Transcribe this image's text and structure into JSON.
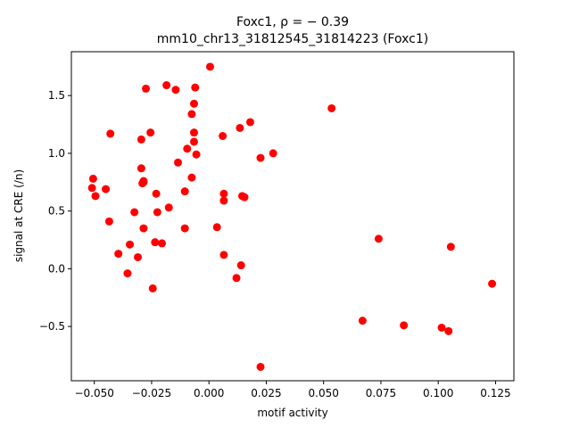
{
  "chart_data": {
    "type": "scatter",
    "title_line1": "Foxc1, ρ = − 0.39",
    "title_line2": "mm10_chr13_31812545_31814223 (Foxc1)",
    "xlabel": "motif activity",
    "ylabel": "signal at CRE (/n)",
    "xlim": [
      -0.06,
      0.133
    ],
    "ylim": [
      -0.97,
      1.88
    ],
    "xticks": [
      -0.05,
      -0.025,
      0.0,
      0.025,
      0.05,
      0.075,
      0.1,
      0.125
    ],
    "xtick_labels": [
      "−0.050",
      "−0.025",
      "0.000",
      "0.025",
      "0.050",
      "0.075",
      "0.100",
      "0.125"
    ],
    "yticks": [
      -0.5,
      0.0,
      0.5,
      1.0,
      1.5
    ],
    "ytick_labels": [
      "−0.5",
      "0.0",
      "0.5",
      "1.0",
      "1.5"
    ],
    "grid": false,
    "marker_color": "#ff0000",
    "x": [
      -0.0505,
      -0.051,
      -0.0495,
      -0.045,
      -0.043,
      -0.0435,
      -0.0395,
      -0.0355,
      -0.0345,
      -0.0325,
      -0.031,
      -0.0295,
      -0.0295,
      -0.0285,
      -0.029,
      -0.0285,
      -0.0285,
      -0.0275,
      -0.0255,
      -0.0245,
      -0.0235,
      -0.023,
      -0.0225,
      -0.0205,
      -0.0185,
      -0.0175,
      -0.0145,
      -0.0135,
      -0.0105,
      -0.0105,
      -0.0095,
      -0.0075,
      -0.0075,
      -0.0065,
      -0.0065,
      -0.0065,
      -0.0055,
      -0.006,
      0.0005,
      0.0035,
      0.006,
      0.0065,
      0.0065,
      0.0065,
      0.012,
      0.0135,
      0.0145,
      0.014,
      0.0155,
      0.018,
      0.0225,
      0.0225,
      0.028,
      0.0535,
      0.067,
      0.074,
      0.085,
      0.1015,
      0.1045,
      0.1055,
      0.1235
    ],
    "y": [
      0.78,
      0.7,
      0.63,
      0.69,
      1.17,
      0.41,
      0.13,
      -0.04,
      0.21,
      0.49,
      0.1,
      1.12,
      0.87,
      0.35,
      0.74,
      0.76,
      0.75,
      1.56,
      1.18,
      -0.17,
      0.23,
      0.65,
      0.49,
      0.22,
      1.59,
      0.53,
      1.55,
      0.92,
      0.35,
      0.67,
      1.04,
      0.79,
      1.34,
      1.43,
      1.18,
      1.1,
      0.99,
      1.57,
      1.75,
      0.36,
      1.15,
      0.12,
      0.59,
      0.65,
      -0.08,
      1.22,
      0.63,
      0.03,
      0.62,
      1.27,
      0.96,
      -0.85,
      1.0,
      1.39,
      -0.45,
      0.26,
      -0.49,
      -0.51,
      -0.54,
      0.19,
      -0.13
    ]
  }
}
